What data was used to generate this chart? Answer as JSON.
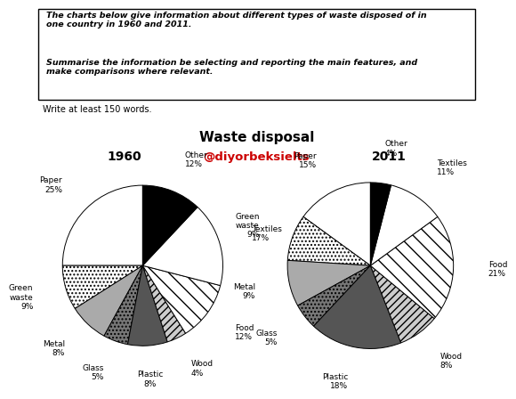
{
  "title": "Waste disposal",
  "watermark": "@diyorbeksielts",
  "header_text1": "The charts below give information about different types of waste disposed of in\none country in 1960 and 2011.",
  "header_text2": "Summarise the information be selecting and reporting the main features, and\nmake comparisons where relevant.",
  "footer_text": "Write at least 150 words.",
  "categories": [
    "Paper",
    "Green waste",
    "Metal",
    "Glass",
    "Plastic",
    "Wood",
    "Food",
    "Textiles",
    "Other"
  ],
  "values_1960": [
    25,
    9,
    8,
    5,
    8,
    4,
    12,
    17,
    12
  ],
  "values_2011": [
    15,
    9,
    9,
    5,
    18,
    8,
    21,
    11,
    4
  ],
  "year1": "1960",
  "year2": "2011",
  "cat_styles": {
    "Paper": {
      "hatch": "",
      "color": "white",
      "ec": "black"
    },
    "Green waste": {
      "hatch": "....",
      "color": "white",
      "ec": "black"
    },
    "Metal": {
      "hatch": "",
      "color": "#aaaaaa",
      "ec": "black"
    },
    "Glass": {
      "hatch": "....",
      "color": "#777777",
      "ec": "black"
    },
    "Plastic": {
      "hatch": "",
      "color": "#555555",
      "ec": "black"
    },
    "Wood": {
      "hatch": "////",
      "color": "#cccccc",
      "ec": "black"
    },
    "Food": {
      "hatch": "\\\\",
      "color": "white",
      "ec": "black"
    },
    "Textiles": {
      "hatch": "wwww",
      "color": "white",
      "ec": "black"
    },
    "Other": {
      "hatch": "",
      "color": "black",
      "ec": "black"
    }
  },
  "bg_color": "white",
  "watermark_color": "#cc0000",
  "title_fontsize": 11,
  "label_fontsize": 6.5,
  "year_fontsize": 10
}
